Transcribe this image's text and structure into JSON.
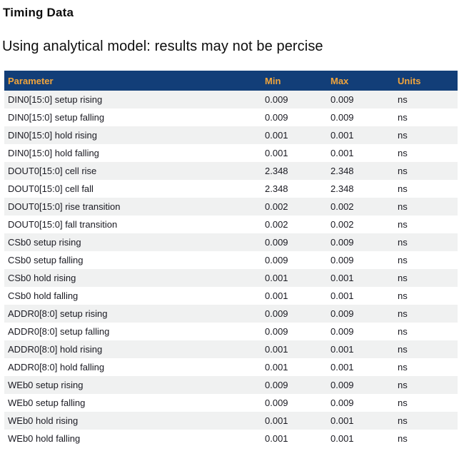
{
  "page": {
    "title": "Timing Data",
    "subtitle": "Using analytical model: results may not be percise"
  },
  "colors": {
    "header_bg": "#123e78",
    "header_text": "#f0a43c",
    "row_stripe_bg": "#f0f1f1",
    "row_bg": "#ffffff",
    "text": "#1a1a22"
  },
  "table": {
    "columns": [
      {
        "key": "parameter",
        "label": "Parameter"
      },
      {
        "key": "min",
        "label": "Min"
      },
      {
        "key": "max",
        "label": "Max"
      },
      {
        "key": "units",
        "label": "Units"
      }
    ],
    "rows": [
      {
        "parameter": "DIN0[15:0] setup rising",
        "min": "0.009",
        "max": "0.009",
        "units": "ns"
      },
      {
        "parameter": "DIN0[15:0] setup falling",
        "min": "0.009",
        "max": "0.009",
        "units": "ns"
      },
      {
        "parameter": "DIN0[15:0] hold rising",
        "min": "0.001",
        "max": "0.001",
        "units": "ns"
      },
      {
        "parameter": "DIN0[15:0] hold falling",
        "min": "0.001",
        "max": "0.001",
        "units": "ns"
      },
      {
        "parameter": "DOUT0[15:0] cell rise",
        "min": "2.348",
        "max": "2.348",
        "units": "ns"
      },
      {
        "parameter": "DOUT0[15:0] cell fall",
        "min": "2.348",
        "max": "2.348",
        "units": "ns"
      },
      {
        "parameter": "DOUT0[15:0] rise transition",
        "min": "0.002",
        "max": "0.002",
        "units": "ns"
      },
      {
        "parameter": "DOUT0[15:0] fall transition",
        "min": "0.002",
        "max": "0.002",
        "units": "ns"
      },
      {
        "parameter": "CSb0 setup rising",
        "min": "0.009",
        "max": "0.009",
        "units": "ns"
      },
      {
        "parameter": "CSb0 setup falling",
        "min": "0.009",
        "max": "0.009",
        "units": "ns"
      },
      {
        "parameter": "CSb0 hold rising",
        "min": "0.001",
        "max": "0.001",
        "units": "ns"
      },
      {
        "parameter": "CSb0 hold falling",
        "min": "0.001",
        "max": "0.001",
        "units": "ns"
      },
      {
        "parameter": "ADDR0[8:0] setup rising",
        "min": "0.009",
        "max": "0.009",
        "units": "ns"
      },
      {
        "parameter": "ADDR0[8:0] setup falling",
        "min": "0.009",
        "max": "0.009",
        "units": "ns"
      },
      {
        "parameter": "ADDR0[8:0] hold rising",
        "min": "0.001",
        "max": "0.001",
        "units": "ns"
      },
      {
        "parameter": "ADDR0[8:0] hold falling",
        "min": "0.001",
        "max": "0.001",
        "units": "ns"
      },
      {
        "parameter": "WEb0 setup rising",
        "min": "0.009",
        "max": "0.009",
        "units": "ns"
      },
      {
        "parameter": "WEb0 setup falling",
        "min": "0.009",
        "max": "0.009",
        "units": "ns"
      },
      {
        "parameter": "WEb0 hold rising",
        "min": "0.001",
        "max": "0.001",
        "units": "ns"
      },
      {
        "parameter": "WEb0 hold falling",
        "min": "0.001",
        "max": "0.001",
        "units": "ns"
      }
    ]
  }
}
